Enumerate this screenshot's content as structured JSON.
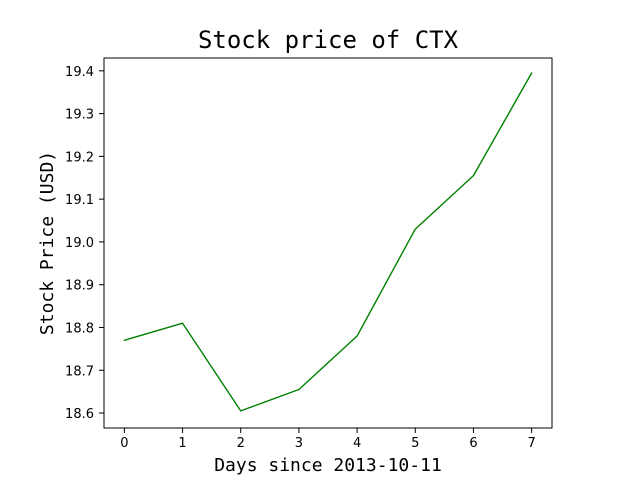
{
  "chart_data": {
    "type": "line",
    "title": "Stock price of CTX",
    "xlabel": "Days since 2013-10-11",
    "ylabel": "Stock Price (USD)",
    "x": [
      0,
      1,
      2,
      3,
      4,
      5,
      6,
      7
    ],
    "xticks": [
      0,
      1,
      2,
      3,
      4,
      5,
      6,
      7
    ],
    "xtick_labels": [
      "0",
      "1",
      "2",
      "3",
      "4",
      "5",
      "6",
      "7"
    ],
    "yticks": [
      18.6,
      18.7,
      18.8,
      18.9,
      19.0,
      19.1,
      19.2,
      19.3,
      19.4
    ],
    "ytick_labels": [
      "18.6",
      "18.7",
      "18.8",
      "18.9",
      "19.0",
      "19.1",
      "19.2",
      "19.3",
      "19.4"
    ],
    "xlim": [
      -0.35,
      7.35
    ],
    "ylim": [
      18.565,
      19.43
    ],
    "grid": false,
    "series": [
      {
        "values": [
          18.77,
          18.81,
          18.605,
          18.655,
          18.78,
          19.03,
          19.155,
          19.395
        ],
        "color": "#008000"
      }
    ]
  }
}
